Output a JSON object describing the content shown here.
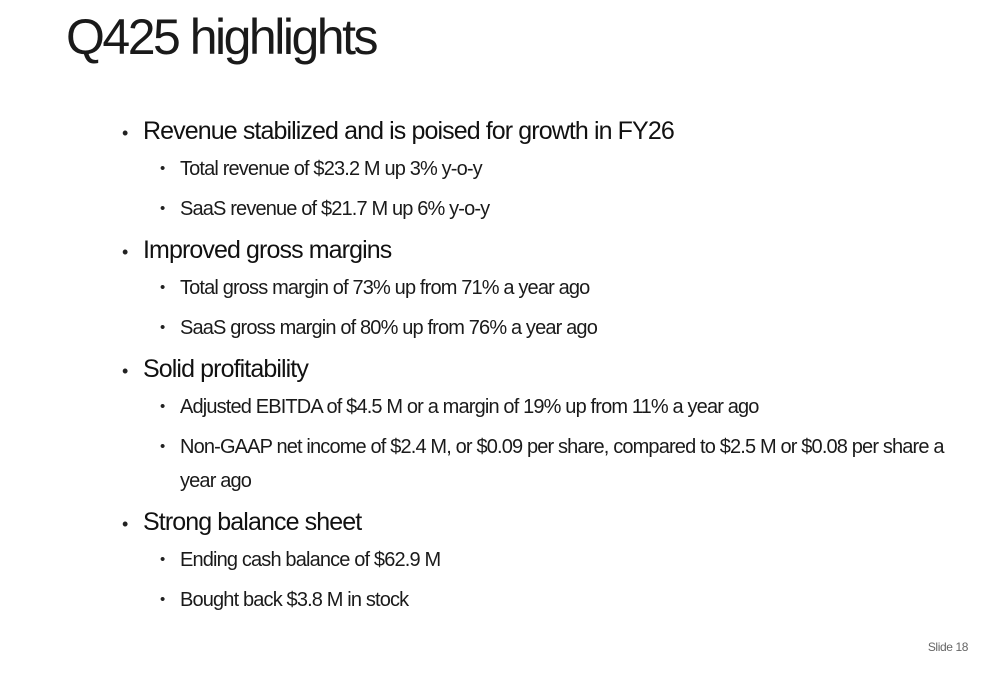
{
  "slide": {
    "title": "Q425 highlights",
    "number_label": "Slide 18"
  },
  "sections": [
    {
      "heading": "Revenue stabilized and is poised for growth in FY26",
      "items": [
        "Total revenue of $23.2 M up 3% y-o-y",
        "SaaS revenue of $21.7 M up 6% y-o-y"
      ]
    },
    {
      "heading": "Improved gross margins",
      "items": [
        "Total gross margin of 73% up from 71% a year ago",
        "SaaS gross margin of 80% up from 76% a year ago"
      ]
    },
    {
      "heading": "Solid profitability",
      "items": [
        "Adjusted EBITDA of $4.5 M or a margin of 19% up from 11% a year ago",
        "Non-GAAP net income of $2.4 M, or $0.09 per share, compared to $2.5 M or $0.08 per share a year ago"
      ]
    },
    {
      "heading": "Strong balance sheet",
      "items": [
        "Ending cash balance of $62.9 M",
        "Bought back $3.8 M in stock"
      ]
    }
  ]
}
